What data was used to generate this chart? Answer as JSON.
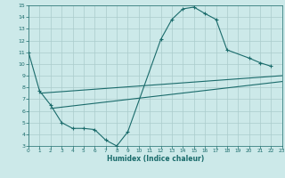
{
  "bg_color": "#cce9e9",
  "line_color": "#1a6b6b",
  "grid_color": "#aacccc",
  "xlabel": "Humidex (Indice chaleur)",
  "xlim": [
    0,
    23
  ],
  "ylim": [
    3,
    15
  ],
  "xticks": [
    0,
    1,
    2,
    3,
    4,
    5,
    6,
    7,
    8,
    9,
    10,
    11,
    12,
    13,
    14,
    15,
    16,
    17,
    18,
    19,
    20,
    21,
    22,
    23
  ],
  "yticks": [
    3,
    4,
    5,
    6,
    7,
    8,
    9,
    10,
    11,
    12,
    13,
    14,
    15
  ],
  "curve_x": [
    0,
    1,
    2,
    3,
    4,
    5,
    6,
    7,
    8,
    9,
    12,
    13,
    14,
    15,
    16,
    17,
    18,
    20,
    21,
    22
  ],
  "curve_y": [
    11.0,
    7.7,
    6.5,
    5.0,
    4.5,
    4.5,
    4.4,
    3.5,
    3.0,
    4.2,
    12.1,
    13.8,
    14.7,
    14.85,
    14.3,
    13.8,
    11.2,
    10.5,
    10.1,
    9.8
  ],
  "line1_x": [
    1,
    23
  ],
  "line1_y": [
    7.5,
    9.0
  ],
  "line2_x": [
    2,
    23
  ],
  "line2_y": [
    6.2,
    8.5
  ]
}
